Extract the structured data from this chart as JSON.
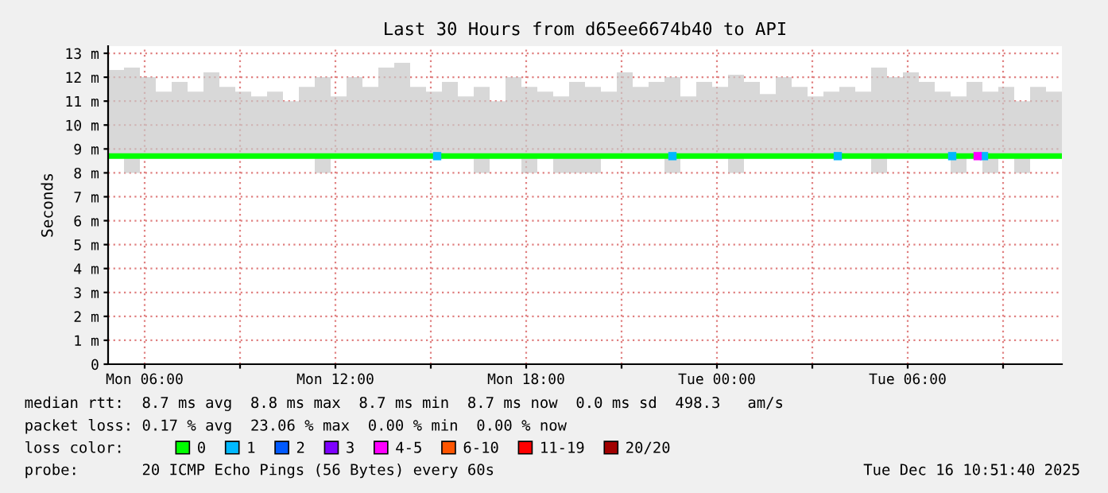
{
  "chart_data": {
    "type": "line",
    "title": "Last 30 Hours from d65ee6674b40 to API",
    "ylabel": "Seconds",
    "xlim": [
      "2025-12-15T04:51",
      "2025-12-16T10:51"
    ],
    "xticks": [
      {
        "value": "2025-12-15T06:00",
        "label": "Mon 06:00"
      },
      {
        "value": "2025-12-15T09:00",
        "label": null
      },
      {
        "value": "2025-12-15T12:00",
        "label": "Mon 12:00"
      },
      {
        "value": "2025-12-15T15:00",
        "label": null
      },
      {
        "value": "2025-12-15T18:00",
        "label": "Mon 18:00"
      },
      {
        "value": "2025-12-15T21:00",
        "label": null
      },
      {
        "value": "2025-12-16T00:00",
        "label": "Tue 00:00"
      },
      {
        "value": "2025-12-16T03:00",
        "label": null
      },
      {
        "value": "2025-12-16T06:00",
        "label": "Tue 06:00"
      },
      {
        "value": "2025-12-16T09:00",
        "label": null
      }
    ],
    "ylim": [
      0,
      13.3
    ],
    "yticks": [
      0,
      {
        "value": 1,
        "label": "1 m"
      },
      {
        "value": 2,
        "label": "2 m"
      },
      {
        "value": 3,
        "label": "3 m"
      },
      {
        "value": 4,
        "label": "4 m"
      },
      {
        "value": 5,
        "label": "5 m"
      },
      {
        "value": 6,
        "label": "6 m"
      },
      {
        "value": 7,
        "label": "7 m"
      },
      {
        "value": 8,
        "label": "8 m"
      },
      {
        "value": 9,
        "label": "9 m"
      },
      {
        "value": 10,
        "label": "10 m"
      },
      {
        "value": 11,
        "label": "11 m"
      },
      {
        "value": 12,
        "label": "12 m"
      },
      {
        "value": 13,
        "label": "13 m"
      }
    ],
    "grid": true,
    "legend": "bottom",
    "legend_title": "loss color:",
    "series": [
      {
        "name": "0",
        "color": "#00ff00",
        "x": [
          "2025-12-15T04:51",
          "2025-12-15T05:21",
          "2025-12-15T05:51",
          "2025-12-15T06:21",
          "2025-12-15T06:51",
          "2025-12-15T07:21",
          "2025-12-15T07:51",
          "2025-12-15T08:21",
          "2025-12-15T08:51",
          "2025-12-15T09:21",
          "2025-12-15T09:51",
          "2025-12-15T10:21",
          "2025-12-15T10:51",
          "2025-12-15T11:21",
          "2025-12-15T11:51",
          "2025-12-15T12:21",
          "2025-12-15T12:51",
          "2025-12-15T13:21",
          "2025-12-15T13:51",
          "2025-12-15T14:21",
          "2025-12-15T14:51",
          "2025-12-15T15:21",
          "2025-12-15T15:51",
          "2025-12-15T16:21",
          "2025-12-15T16:51",
          "2025-12-15T17:21",
          "2025-12-15T17:51",
          "2025-12-15T18:21",
          "2025-12-15T18:51",
          "2025-12-15T19:21",
          "2025-12-15T19:51",
          "2025-12-15T20:21",
          "2025-12-15T20:51",
          "2025-12-15T21:21",
          "2025-12-15T21:51",
          "2025-12-15T22:21",
          "2025-12-15T22:51",
          "2025-12-15T23:21",
          "2025-12-15T23:51",
          "2025-12-16T00:21",
          "2025-12-16T00:51",
          "2025-12-16T01:21",
          "2025-12-16T01:51",
          "2025-12-16T02:21",
          "2025-12-16T02:51",
          "2025-12-16T03:21",
          "2025-12-16T03:51",
          "2025-12-16T04:21",
          "2025-12-16T04:51",
          "2025-12-16T05:21",
          "2025-12-16T05:51",
          "2025-12-16T06:21",
          "2025-12-16T06:51",
          "2025-12-16T07:21",
          "2025-12-16T07:51",
          "2025-12-16T08:21",
          "2025-12-16T08:51",
          "2025-12-16T09:21",
          "2025-12-16T09:51",
          "2025-12-16T10:21",
          "2025-12-16T10:51"
        ],
        "values": [
          8.7,
          8.7,
          8.7,
          8.7,
          8.7,
          8.7,
          8.7,
          8.7,
          8.7,
          8.7,
          8.7,
          8.7,
          8.7,
          8.7,
          8.7,
          8.7,
          8.7,
          8.7,
          8.7,
          8.7,
          8.7,
          8.7,
          8.7,
          8.7,
          8.7,
          8.7,
          8.7,
          8.7,
          8.7,
          8.7,
          8.7,
          8.7,
          8.7,
          8.7,
          8.7,
          8.7,
          8.7,
          8.7,
          8.7,
          8.7,
          8.7,
          8.7,
          8.7,
          8.7,
          8.7,
          8.7,
          8.7,
          8.7,
          8.7,
          8.7,
          8.7,
          8.7,
          8.7,
          8.7,
          8.7,
          8.7,
          8.7,
          8.7,
          8.7,
          8.7,
          8.7
        ],
        "lower": [
          8.6,
          8.0,
          8.6,
          8.6,
          8.6,
          8.6,
          8.6,
          8.6,
          8.6,
          8.6,
          8.6,
          8.6,
          8.6,
          8.0,
          8.6,
          8.6,
          8.6,
          8.6,
          8.6,
          8.6,
          8.6,
          8.6,
          8.6,
          8.0,
          8.6,
          8.6,
          8.0,
          8.6,
          8.0,
          8.0,
          8.0,
          8.6,
          8.6,
          8.6,
          8.6,
          8.0,
          8.6,
          8.6,
          8.6,
          8.0,
          8.6,
          8.6,
          8.6,
          8.6,
          8.6,
          8.6,
          8.6,
          8.6,
          8.0,
          8.6,
          8.6,
          8.6,
          8.6,
          8.0,
          8.6,
          8.0,
          8.6,
          8.0,
          8.6,
          8.6,
          8.6
        ],
        "upper": [
          12.3,
          12.4,
          12.0,
          11.4,
          11.8,
          11.4,
          12.2,
          11.6,
          11.4,
          11.2,
          11.4,
          11.0,
          11.6,
          12.0,
          11.2,
          12.0,
          11.6,
          12.4,
          12.6,
          11.6,
          11.4,
          11.8,
          11.2,
          11.6,
          11.0,
          12.0,
          11.6,
          11.4,
          11.2,
          11.8,
          11.6,
          11.4,
          12.2,
          11.6,
          11.8,
          12.0,
          11.2,
          11.8,
          11.6,
          12.1,
          11.8,
          11.3,
          12.0,
          11.6,
          11.2,
          11.4,
          11.6,
          11.4,
          12.4,
          12.0,
          12.2,
          11.8,
          11.4,
          11.2,
          11.8,
          11.4,
          11.6,
          11.0,
          11.6,
          11.4,
          11.4
        ]
      },
      {
        "name": "1",
        "type": "scatter",
        "color": "#00b8ff",
        "x": [
          "2025-12-15T15:12",
          "2025-12-15T22:36",
          "2025-12-16T03:48",
          "2025-12-16T07:24",
          "2025-12-16T08:24"
        ],
        "values": [
          8.7,
          8.7,
          8.7,
          8.7,
          8.7
        ]
      },
      {
        "name": "2",
        "type": "scatter",
        "color": "#0059ff"
      },
      {
        "name": "3",
        "type": "scatter",
        "color": "#7e00ff"
      },
      {
        "name": "4-5",
        "type": "scatter",
        "color": "#ff00ff",
        "x": [
          "2025-12-16T08:12"
        ],
        "values": [
          8.7
        ]
      },
      {
        "name": "6-10",
        "type": "scatter",
        "color": "#ff5500"
      },
      {
        "name": "11-19",
        "type": "scatter",
        "color": "#ff0000"
      },
      {
        "name": "20/20",
        "type": "scatter",
        "color": "#a10000"
      }
    ],
    "annotations": [
      "median rtt:  8.7 ms avg  8.8 ms max  8.7 ms min  8.7 ms now  0.0 ms sd  498.3   am/s",
      "packet loss: 0.17 % avg  23.06 % max  0.00 % min  0.00 % now",
      "probe:       20 ICMP Echo Pings (56 Bytes) every 60s",
      "Tue Dec 16 10:51:40 2025"
    ]
  }
}
